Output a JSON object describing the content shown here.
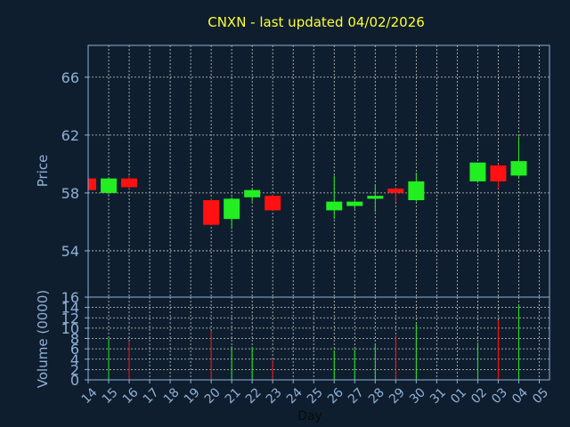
{
  "colors": {
    "background": "#0f1e2e",
    "title": "#ffff33",
    "axis_text": "#8fb0d8",
    "axis_line": "#8fb0d8",
    "grid": "#c8c8c8",
    "up": "#22ee22",
    "down": "#ff1111",
    "xlabel": "#0a0a0a"
  },
  "chart_data": {
    "type": "candlestick",
    "title": "CNXN - last updated 04/02/2026",
    "xlabel": "Day",
    "grid": true,
    "price_panel": {
      "ylabel": "Price",
      "ylim": [
        50.8,
        68.2
      ],
      "yticks": [
        54,
        58,
        62,
        66
      ]
    },
    "volume_panel": {
      "ylabel": "Volume (0000)",
      "ylim": [
        0,
        16
      ],
      "yticks": [
        0,
        2,
        4,
        6,
        8,
        10,
        12,
        14,
        16
      ]
    },
    "x_tick_labels": [
      "14",
      "15",
      "16",
      "17",
      "18",
      "19",
      "20",
      "21",
      "22",
      "23",
      "24",
      "25",
      "26",
      "27",
      "28",
      "29",
      "30",
      "31",
      "01",
      "02",
      "03",
      "04",
      "05"
    ],
    "candles": [
      {
        "day": "14",
        "open": 59.0,
        "close": 58.2,
        "high": 59.0,
        "low": 58.1,
        "volume": 0
      },
      {
        "day": "15",
        "open": 58.0,
        "close": 59.0,
        "high": 59.1,
        "low": 57.9,
        "volume": 8.0
      },
      {
        "day": "16",
        "open": 59.0,
        "close": 58.4,
        "high": 59.2,
        "low": 58.3,
        "volume": 7.3
      },
      {
        "day": "20",
        "open": 57.5,
        "close": 55.8,
        "high": 57.6,
        "low": 55.8,
        "volume": 9.5
      },
      {
        "day": "21",
        "open": 56.2,
        "close": 57.6,
        "high": 57.7,
        "low": 55.5,
        "volume": 6.5
      },
      {
        "day": "22",
        "open": 57.7,
        "close": 58.2,
        "high": 58.3,
        "low": 57.4,
        "volume": 6.3
      },
      {
        "day": "23",
        "open": 57.8,
        "close": 56.8,
        "high": 57.9,
        "low": 56.8,
        "volume": 3.9
      },
      {
        "day": "26",
        "open": 56.8,
        "close": 57.4,
        "high": 59.2,
        "low": 56.2,
        "volume": 5.7
      },
      {
        "day": "27",
        "open": 57.1,
        "close": 57.4,
        "high": 57.5,
        "low": 56.9,
        "volume": 5.9
      },
      {
        "day": "28",
        "open": 57.6,
        "close": 57.8,
        "high": 58.6,
        "low": 56.7,
        "volume": 7.0
      },
      {
        "day": "29",
        "open": 58.3,
        "close": 58.0,
        "high": 58.4,
        "low": 57.4,
        "volume": 8.6
      },
      {
        "day": "30",
        "open": 57.5,
        "close": 58.8,
        "high": 59.4,
        "low": 57.4,
        "volume": 10.8
      },
      {
        "day": "02",
        "open": 58.8,
        "close": 60.1,
        "high": 60.1,
        "low": 58.7,
        "volume": 7.2
      },
      {
        "day": "03",
        "open": 59.9,
        "close": 58.8,
        "high": 60.0,
        "low": 58.3,
        "volume": 11.5
      },
      {
        "day": "04",
        "open": 59.2,
        "close": 60.2,
        "high": 61.9,
        "low": 59.0,
        "volume": 14.4
      }
    ]
  }
}
